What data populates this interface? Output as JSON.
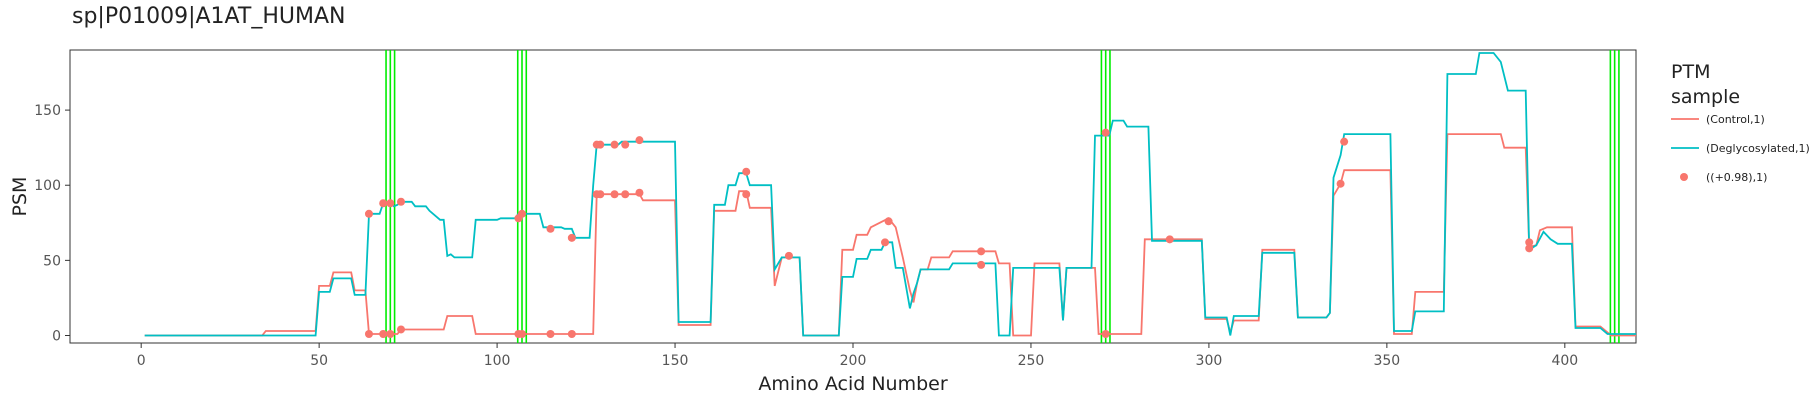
{
  "chart_data": {
    "type": "line",
    "title": "sp|P01009|A1AT_HUMAN",
    "xlabel": "Amino Acid Number",
    "ylabel": "PSM",
    "xlim": [
      -20,
      420
    ],
    "ylim": [
      -5,
      190
    ],
    "x_ticks": [
      0,
      50,
      100,
      150,
      200,
      250,
      300,
      350,
      400
    ],
    "y_ticks": [
      0,
      50,
      100,
      150
    ],
    "grid": false,
    "legend": {
      "title_line1": "PTM",
      "title_line2": "sample",
      "placement": "right"
    },
    "colors": {
      "control": "#F8766D",
      "deglycosylated": "#00BFC4",
      "sites": "#00EE00",
      "points": "#F8766D"
    },
    "glycosylation_sites": [
      70,
      107,
      271,
      414
    ],
    "series": [
      {
        "name": "(Control,1)",
        "points": [
          [
            1,
            0
          ],
          [
            34,
            0
          ],
          [
            35,
            3
          ],
          [
            49,
            3
          ],
          [
            50,
            33
          ],
          [
            53,
            33
          ],
          [
            54,
            42
          ],
          [
            59,
            42
          ],
          [
            60,
            30
          ],
          [
            63,
            30
          ],
          [
            64,
            1
          ],
          [
            72,
            1
          ],
          [
            73,
            4
          ],
          [
            85,
            4
          ],
          [
            86,
            13
          ],
          [
            93,
            13
          ],
          [
            94,
            1
          ],
          [
            112,
            1
          ],
          [
            113,
            1
          ],
          [
            118,
            1
          ],
          [
            122,
            1
          ],
          [
            125,
            1
          ],
          [
            127,
            1
          ],
          [
            128,
            94
          ],
          [
            140,
            94
          ],
          [
            141,
            90
          ],
          [
            150,
            90
          ],
          [
            151,
            7
          ],
          [
            160,
            7
          ],
          [
            161,
            83
          ],
          [
            167,
            83
          ],
          [
            168,
            96
          ],
          [
            170,
            96
          ],
          [
            171,
            85
          ],
          [
            177,
            85
          ],
          [
            178,
            33
          ],
          [
            180,
            52
          ],
          [
            185,
            52
          ],
          [
            186,
            0
          ],
          [
            196,
            0
          ],
          [
            197,
            57
          ],
          [
            200,
            57
          ],
          [
            201,
            67
          ],
          [
            204,
            67
          ],
          [
            205,
            72
          ],
          [
            210,
            78
          ],
          [
            212,
            72
          ],
          [
            214,
            52
          ],
          [
            216,
            30
          ],
          [
            217,
            22
          ],
          [
            218,
            35
          ],
          [
            219,
            44
          ],
          [
            221,
            44
          ],
          [
            222,
            52
          ],
          [
            227,
            52
          ],
          [
            228,
            56
          ],
          [
            240,
            56
          ],
          [
            241,
            48
          ],
          [
            244,
            48
          ],
          [
            245,
            0
          ],
          [
            250,
            0
          ],
          [
            251,
            48
          ],
          [
            258,
            48
          ],
          [
            259,
            10
          ],
          [
            260,
            45
          ],
          [
            268,
            45
          ],
          [
            269,
            1
          ],
          [
            281,
            1
          ],
          [
            282,
            64
          ],
          [
            298,
            64
          ],
          [
            299,
            11
          ],
          [
            305,
            11
          ],
          [
            306,
            2
          ],
          [
            307,
            10
          ],
          [
            314,
            10
          ],
          [
            315,
            57
          ],
          [
            324,
            57
          ],
          [
            325,
            12
          ],
          [
            333,
            12
          ],
          [
            334,
            15
          ],
          [
            335,
            93
          ],
          [
            337,
            101
          ],
          [
            338,
            110
          ],
          [
            351,
            110
          ],
          [
            352,
            1
          ],
          [
            357,
            1
          ],
          [
            358,
            29
          ],
          [
            366,
            29
          ],
          [
            367,
            134
          ],
          [
            382,
            134
          ],
          [
            383,
            125
          ],
          [
            389,
            125
          ],
          [
            390,
            59
          ],
          [
            392,
            60
          ],
          [
            393,
            70
          ],
          [
            395,
            72
          ],
          [
            402,
            72
          ],
          [
            403,
            6
          ],
          [
            410,
            6
          ],
          [
            413,
            0
          ],
          [
            420,
            0
          ]
        ]
      },
      {
        "name": "(Deglycosylated,1)",
        "points": [
          [
            1,
            0
          ],
          [
            49,
            0
          ],
          [
            50,
            29
          ],
          [
            53,
            29
          ],
          [
            54,
            38
          ],
          [
            59,
            38
          ],
          [
            60,
            27
          ],
          [
            63,
            27
          ],
          [
            64,
            81
          ],
          [
            67,
            81
          ],
          [
            68,
            88
          ],
          [
            70,
            88
          ],
          [
            71,
            86
          ],
          [
            72,
            87
          ],
          [
            73,
            89
          ],
          [
            76,
            89
          ],
          [
            77,
            86
          ],
          [
            80,
            86
          ],
          [
            81,
            83
          ],
          [
            84,
            77
          ],
          [
            85,
            77
          ],
          [
            86,
            53
          ],
          [
            87,
            54
          ],
          [
            88,
            52
          ],
          [
            93,
            52
          ],
          [
            94,
            77
          ],
          [
            100,
            77
          ],
          [
            101,
            78
          ],
          [
            105,
            78
          ],
          [
            106,
            81
          ],
          [
            112,
            81
          ],
          [
            113,
            72
          ],
          [
            118,
            72
          ],
          [
            119,
            71
          ],
          [
            121,
            71
          ],
          [
            122,
            65
          ],
          [
            126,
            65
          ],
          [
            127,
            100
          ],
          [
            128,
            127
          ],
          [
            134,
            127
          ],
          [
            135,
            129
          ],
          [
            150,
            129
          ],
          [
            151,
            9
          ],
          [
            160,
            9
          ],
          [
            161,
            87
          ],
          [
            164,
            87
          ],
          [
            165,
            100
          ],
          [
            167,
            100
          ],
          [
            168,
            108
          ],
          [
            170,
            108
          ],
          [
            171,
            100
          ],
          [
            177,
            100
          ],
          [
            178,
            44
          ],
          [
            180,
            52
          ],
          [
            185,
            52
          ],
          [
            186,
            0
          ],
          [
            196,
            0
          ],
          [
            197,
            39
          ],
          [
            200,
            39
          ],
          [
            201,
            51
          ],
          [
            204,
            51
          ],
          [
            205,
            57
          ],
          [
            208,
            57
          ],
          [
            209,
            62
          ],
          [
            211,
            62
          ],
          [
            212,
            45
          ],
          [
            214,
            45
          ],
          [
            216,
            18
          ],
          [
            217,
            28
          ],
          [
            218,
            35
          ],
          [
            219,
            44
          ],
          [
            227,
            44
          ],
          [
            228,
            48
          ],
          [
            240,
            48
          ],
          [
            241,
            0
          ],
          [
            244,
            0
          ],
          [
            245,
            45
          ],
          [
            258,
            45
          ],
          [
            259,
            10
          ],
          [
            260,
            45
          ],
          [
            267,
            45
          ],
          [
            268,
            133
          ],
          [
            272,
            133
          ],
          [
            273,
            143
          ],
          [
            276,
            143
          ],
          [
            277,
            139
          ],
          [
            283,
            139
          ],
          [
            284,
            63
          ],
          [
            298,
            63
          ],
          [
            299,
            12
          ],
          [
            305,
            12
          ],
          [
            306,
            0
          ],
          [
            307,
            13
          ],
          [
            314,
            13
          ],
          [
            315,
            55
          ],
          [
            324,
            55
          ],
          [
            325,
            12
          ],
          [
            333,
            12
          ],
          [
            334,
            15
          ],
          [
            335,
            105
          ],
          [
            337,
            120
          ],
          [
            338,
            134
          ],
          [
            351,
            134
          ],
          [
            352,
            3
          ],
          [
            357,
            3
          ],
          [
            358,
            16
          ],
          [
            366,
            16
          ],
          [
            367,
            174
          ],
          [
            375,
            174
          ],
          [
            376,
            188
          ],
          [
            380,
            188
          ],
          [
            382,
            182
          ],
          [
            384,
            163
          ],
          [
            389,
            163
          ],
          [
            390,
            57
          ],
          [
            392,
            60
          ],
          [
            394,
            69
          ],
          [
            396,
            64
          ],
          [
            398,
            61
          ],
          [
            402,
            61
          ],
          [
            403,
            5
          ],
          [
            410,
            5
          ],
          [
            412,
            1
          ],
          [
            420,
            1
          ]
        ]
      },
      {
        "name": "((+0.98),1)",
        "type": "scatter",
        "points": [
          [
            64,
            81
          ],
          [
            64,
            1
          ],
          [
            68,
            88
          ],
          [
            68,
            1
          ],
          [
            70,
            88
          ],
          [
            70,
            1
          ],
          [
            73,
            89
          ],
          [
            73,
            4
          ],
          [
            106,
            78
          ],
          [
            106,
            1
          ],
          [
            107,
            81
          ],
          [
            107,
            1
          ],
          [
            115,
            71
          ],
          [
            115,
            1
          ],
          [
            121,
            65
          ],
          [
            121,
            1
          ],
          [
            128,
            127
          ],
          [
            128,
            94
          ],
          [
            129,
            127
          ],
          [
            129,
            94
          ],
          [
            133,
            127
          ],
          [
            133,
            94
          ],
          [
            136,
            127
          ],
          [
            136,
            94
          ],
          [
            140,
            130
          ],
          [
            140,
            95
          ],
          [
            170,
            109
          ],
          [
            170,
            94
          ],
          [
            182,
            53
          ],
          [
            209,
            62
          ],
          [
            210,
            76
          ],
          [
            236,
            56
          ],
          [
            236,
            47
          ],
          [
            271,
            135
          ],
          [
            271,
            1
          ],
          [
            289,
            64
          ],
          [
            337,
            101
          ],
          [
            338,
            129
          ],
          [
            390,
            62
          ],
          [
            390,
            58
          ]
        ]
      }
    ]
  }
}
